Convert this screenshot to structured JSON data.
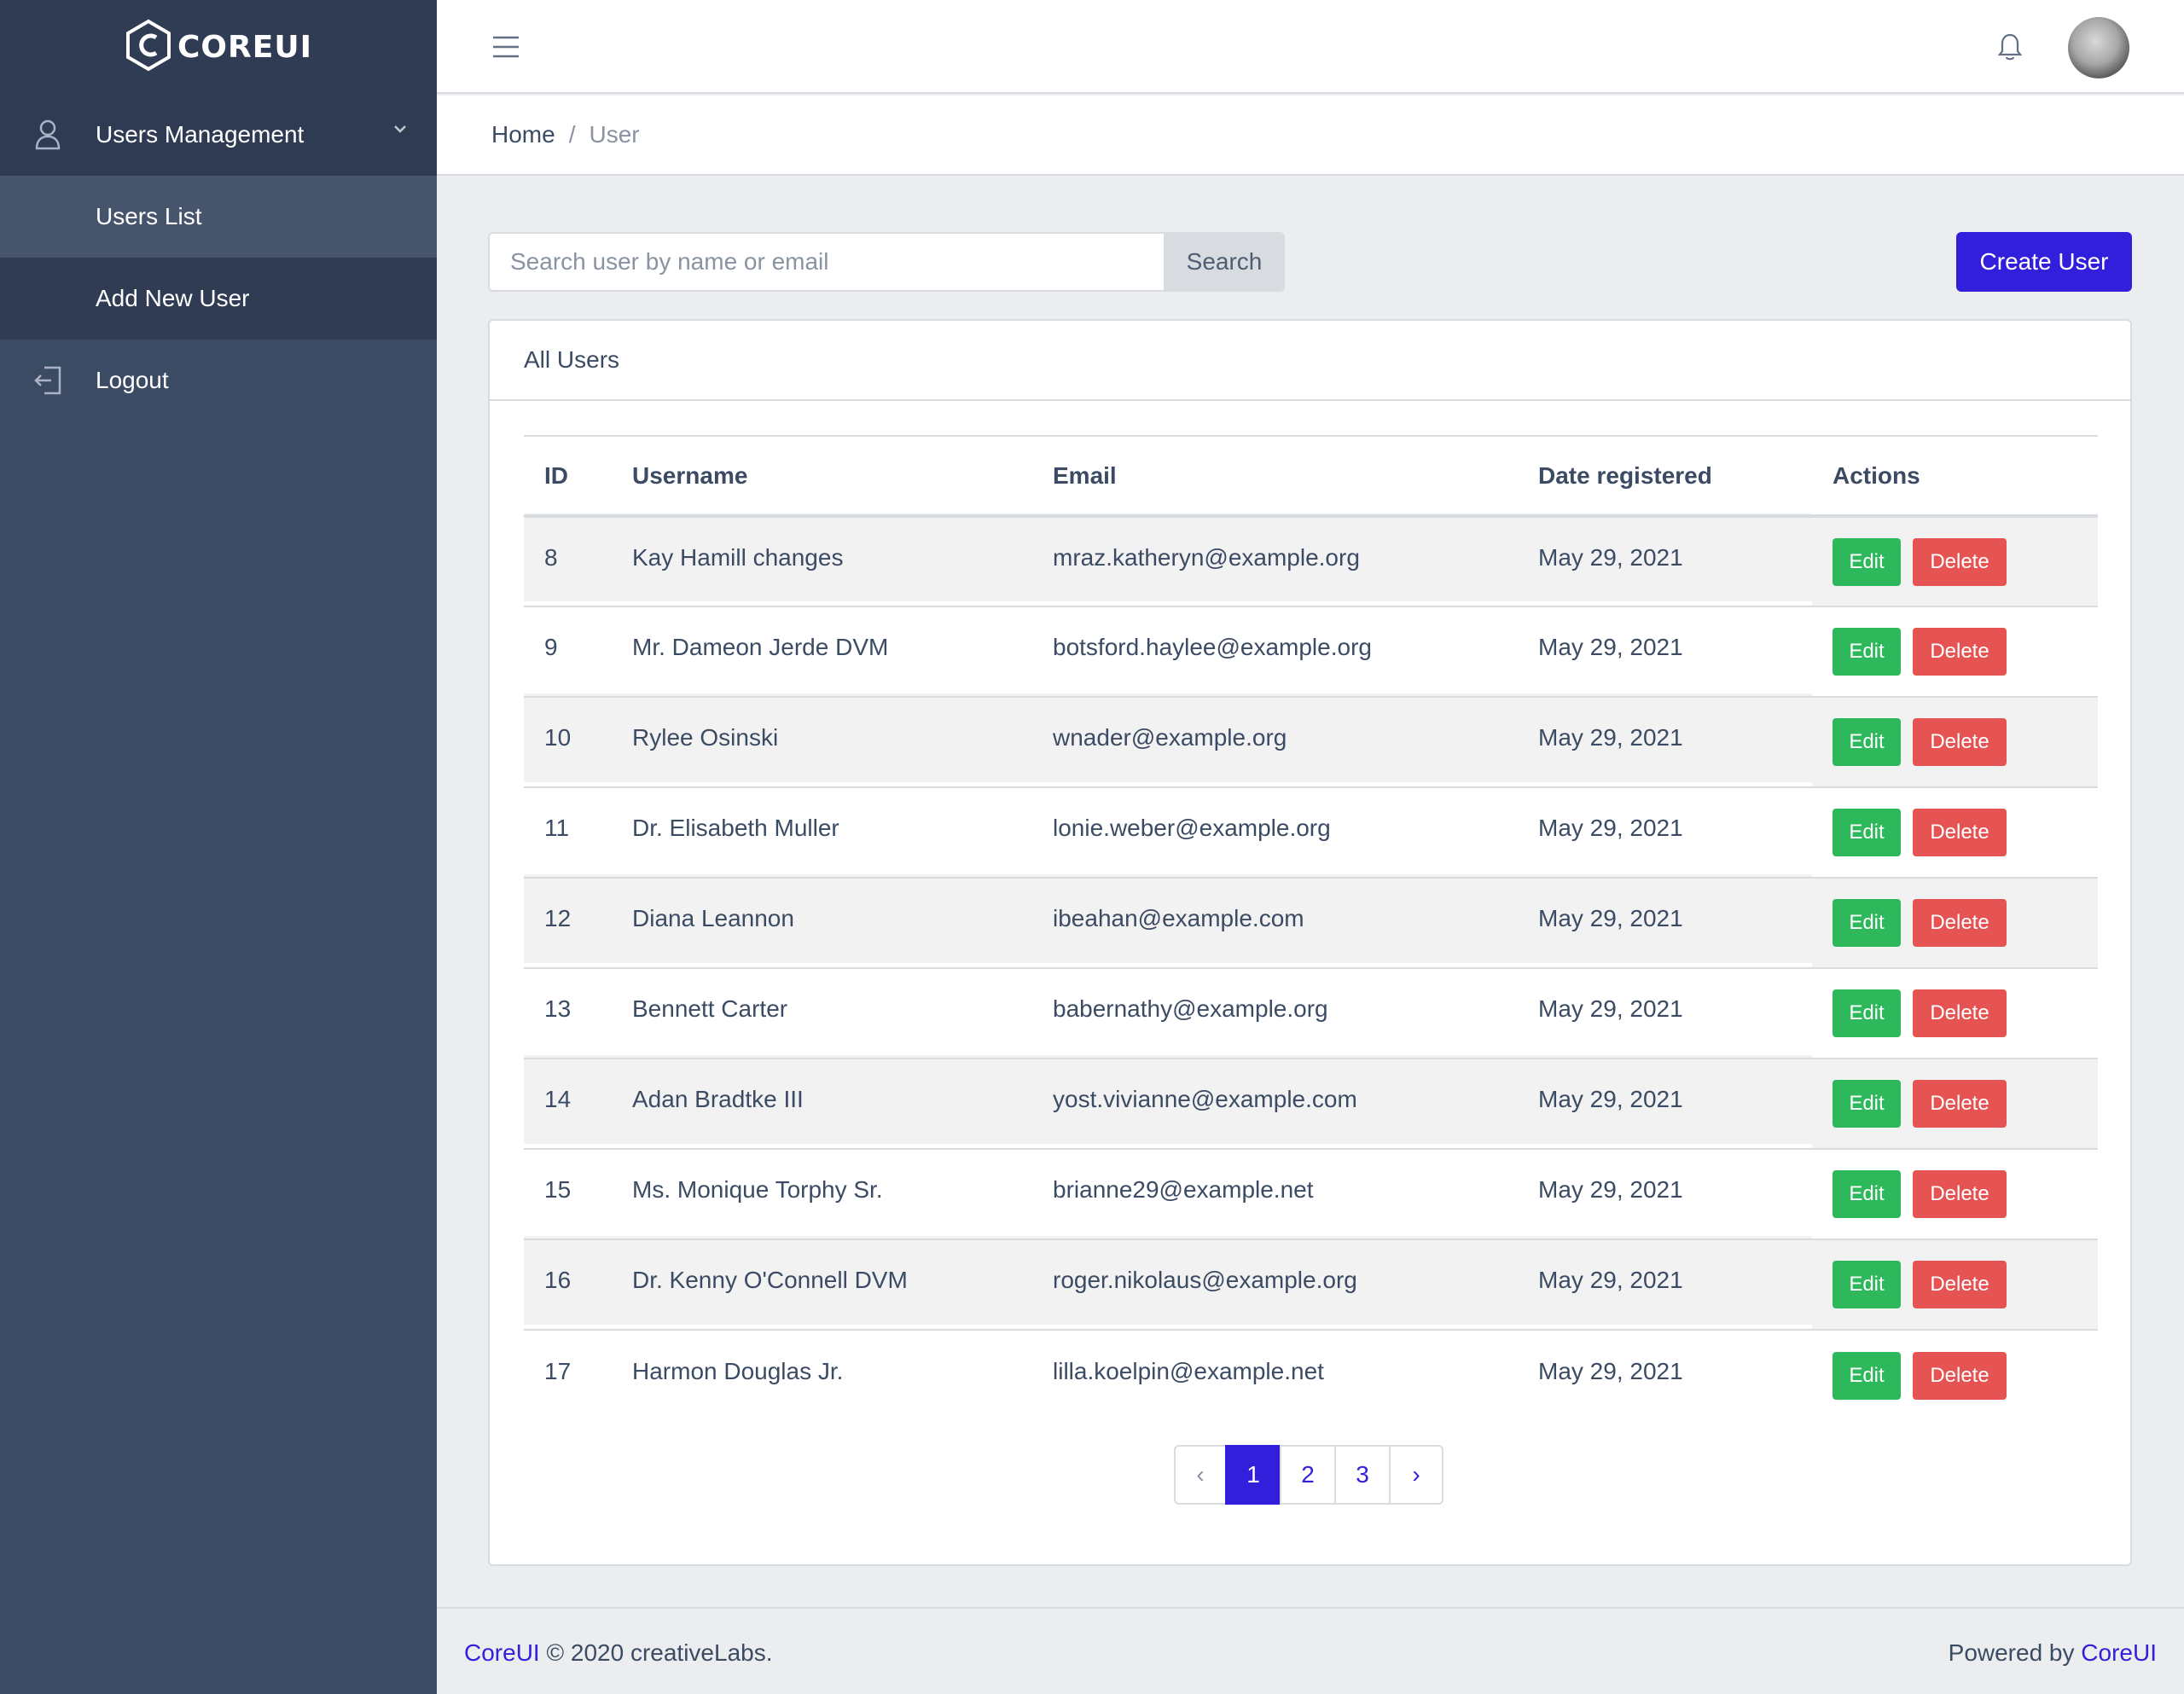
{
  "brand": {
    "name": "COREUI"
  },
  "sidebar": {
    "group_label": "Users Management",
    "sub_items": [
      {
        "label": "Users List"
      },
      {
        "label": "Add New User"
      }
    ],
    "logout_label": "Logout"
  },
  "breadcrumb": {
    "home": "Home",
    "separator": "/",
    "current": "User"
  },
  "search": {
    "placeholder": "Search user by name or email",
    "value": "",
    "button_label": "Search"
  },
  "create_button_label": "Create User",
  "card": {
    "title": "All Users"
  },
  "table": {
    "headers": {
      "id": "ID",
      "username": "Username",
      "email": "Email",
      "date": "Date registered",
      "actions": "Actions"
    },
    "edit_label": "Edit",
    "delete_label": "Delete",
    "rows": [
      {
        "id": "8",
        "username": "Kay Hamill changes",
        "email": "mraz.katheryn@example.org",
        "date": "May 29, 2021"
      },
      {
        "id": "9",
        "username": "Mr. Dameon Jerde DVM",
        "email": "botsford.haylee@example.org",
        "date": "May 29, 2021"
      },
      {
        "id": "10",
        "username": "Rylee Osinski",
        "email": "wnader@example.org",
        "date": "May 29, 2021"
      },
      {
        "id": "11",
        "username": "Dr. Elisabeth Muller",
        "email": "lonie.weber@example.org",
        "date": "May 29, 2021"
      },
      {
        "id": "12",
        "username": "Diana Leannon",
        "email": "ibeahan@example.com",
        "date": "May 29, 2021"
      },
      {
        "id": "13",
        "username": "Bennett Carter",
        "email": "babernathy@example.org",
        "date": "May 29, 2021"
      },
      {
        "id": "14",
        "username": "Adan Bradtke III",
        "email": "yost.vivianne@example.com",
        "date": "May 29, 2021"
      },
      {
        "id": "15",
        "username": "Ms. Monique Torphy Sr.",
        "email": "brianne29@example.net",
        "date": "May 29, 2021"
      },
      {
        "id": "16",
        "username": "Dr. Kenny O'Connell DVM",
        "email": "roger.nikolaus@example.org",
        "date": "May 29, 2021"
      },
      {
        "id": "17",
        "username": "Harmon Douglas Jr.",
        "email": "lilla.koelpin@example.net",
        "date": "May 29, 2021"
      }
    ]
  },
  "pagination": {
    "prev": "‹",
    "pages": [
      "1",
      "2",
      "3"
    ],
    "current": "1",
    "next": "›"
  },
  "footer": {
    "left_link": "CoreUI",
    "left_text": "© 2020 creativeLabs.",
    "right_text": "Powered by",
    "right_link": "CoreUI"
  },
  "colors": {
    "sidebar_bg": "#3c4b64",
    "primary": "#321fdb",
    "success": "#2eb85c",
    "danger": "#e55353"
  },
  "icons": {
    "brand": "coreui-hex-logo-icon",
    "group": "user-icon",
    "group_chevron": "chevron-down-icon",
    "logout": "logout-icon",
    "header_menu": "hamburger-menu-icon",
    "notifications": "bell-icon"
  }
}
